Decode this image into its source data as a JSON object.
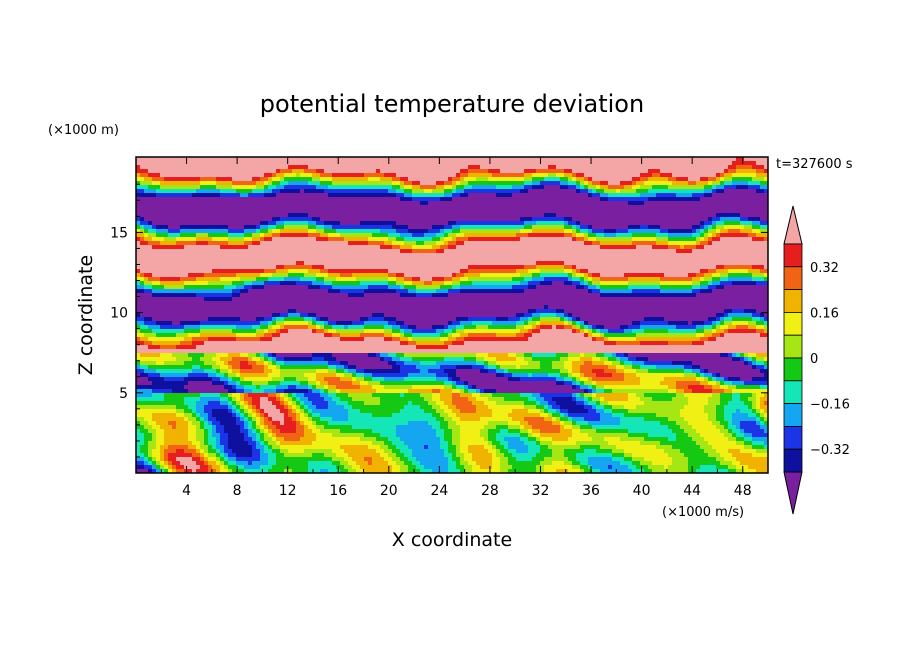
{
  "chart_data": {
    "type": "heatmap",
    "title": "potential temperature deviation",
    "xlabel": "X coordinate",
    "ylabel": "Z coordinate",
    "x_unit": "(×1000 m/s)",
    "y_unit": "(×1000 m)",
    "time_label": "t=327600 s",
    "xlim": [
      0,
      50
    ],
    "ylim": [
      0,
      19.7
    ],
    "x_ticks": [
      "4",
      "8",
      "12",
      "16",
      "20",
      "24",
      "28",
      "32",
      "36",
      "40",
      "44",
      "48"
    ],
    "y_ticks": [
      "5",
      "10",
      "15"
    ],
    "colorbar": {
      "levels": [
        -0.4,
        -0.32,
        -0.24,
        -0.16,
        -0.08,
        0,
        0.08,
        0.16,
        0.24,
        0.32,
        0.4
      ],
      "tick_labels": [
        "0.32",
        "0.16",
        "0",
        "−0.16",
        "−0.32"
      ],
      "colors": [
        "#7a1fa0",
        "#10109e",
        "#1a34e6",
        "#14a6f0",
        "#14e6b8",
        "#14c814",
        "#a6e614",
        "#f0f014",
        "#f0b400",
        "#f06414",
        "#e61e1e",
        "#f4a6a6"
      ],
      "extend": "both"
    },
    "field": {
      "description_free": true,
      "layers": [
        {
          "z": [
            0,
            4.5
          ],
          "regime": "mixed"
        },
        {
          "z": [
            5,
            7.5
          ],
          "regime": "stratified-warm-cold"
        },
        {
          "z": [
            7.5,
            19.7
          ],
          "regime": "banded"
        }
      ]
    }
  }
}
